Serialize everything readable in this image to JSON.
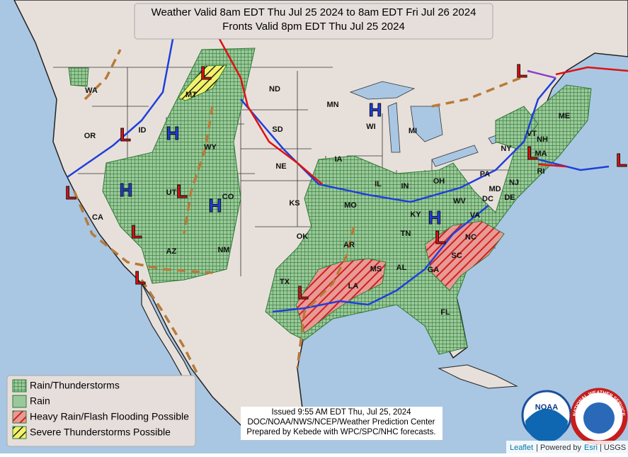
{
  "header": {
    "title_line1": "Weather Valid 8am EDT Thu Jul 25 2024 to 8am EDT Fri Jul 26 2024",
    "title_line2": "Fronts Valid 8pm EDT Thu Jul 25 2024"
  },
  "states": [
    "WA",
    "OR",
    "ID",
    "MT",
    "ND",
    "WY",
    "SD",
    "NE",
    "CO",
    "UT",
    "CA",
    "KS",
    "OK",
    "TX",
    "NM",
    "AZ",
    "MN",
    "WI",
    "MI",
    "IA",
    "IL",
    "IN",
    "OH",
    "MO",
    "KY",
    "AR",
    "TN",
    "MS",
    "AL",
    "GA",
    "SC",
    "NC",
    "VA",
    "WV",
    "PA",
    "NY",
    "VT",
    "NH",
    "ME",
    "MA",
    "RI",
    "NJ",
    "MD",
    "DC",
    "DE",
    "FL",
    "LA"
  ],
  "pressure_centers": [
    "L",
    "L",
    "H",
    "H",
    "L",
    "L",
    "H",
    "L",
    "L",
    "H",
    "L",
    "L",
    "L",
    "H",
    "L",
    "L"
  ],
  "legend": [
    "Rain/Thunderstorms",
    "Rain",
    "Heavy Rain/Flash Flooding Possible",
    "Severe Thunderstorms Possible"
  ],
  "issued": [
    "Issued  9:55 AM EDT  Thu, Jul 25, 2024",
    "DOC/NOAA/NWS/NCEP/Weather Prediction Center",
    "Prepared by Kebede with WPC/SPC/NHC forecasts."
  ],
  "logos": {
    "noaa": "NOAA",
    "nws": "NATIONAL WEATHER SERVICE"
  },
  "attribution": {
    "leaflet": "Leaflet",
    "powered": "| Powered by",
    "esri": "Esri",
    "usgs": "| USGS"
  }
}
